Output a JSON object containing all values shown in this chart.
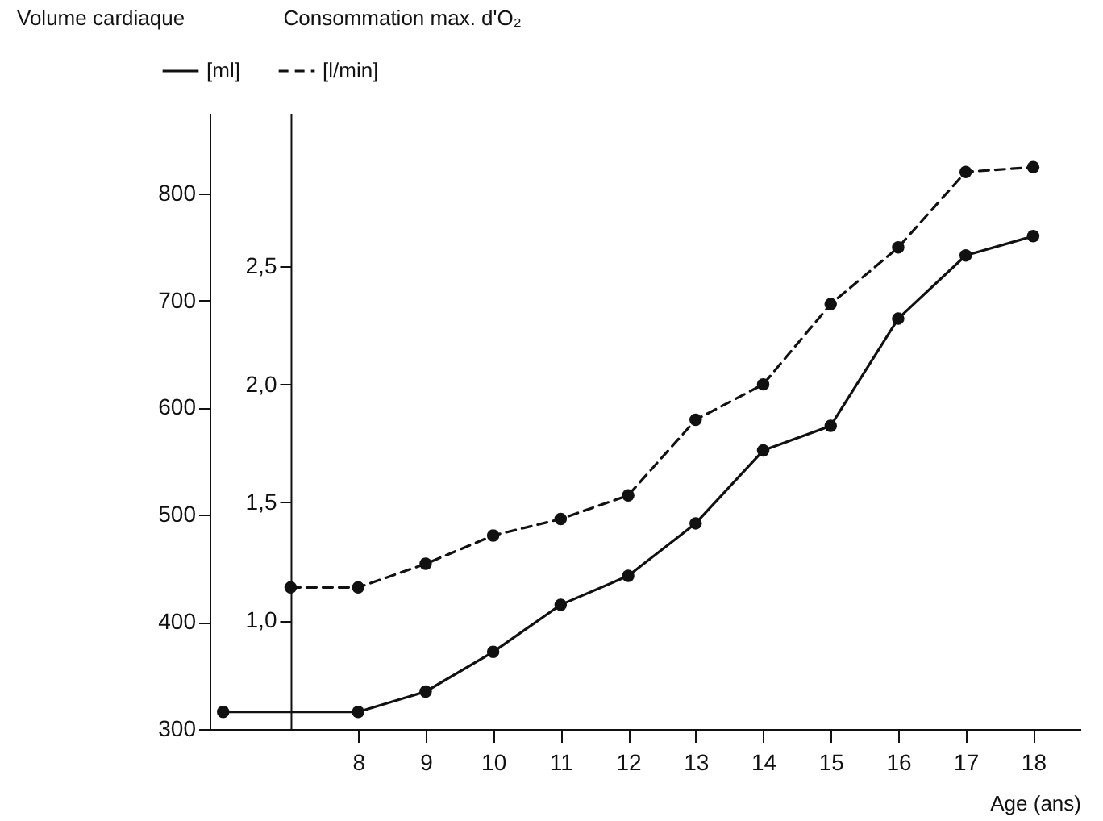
{
  "chart_data": {
    "type": "line",
    "xlabel": "Age (ans)",
    "ylabel": "Volume cardiaque",
    "y2label": "Consommation max. d'O₂",
    "xlim": [
      5.8,
      18.7
    ],
    "xticks": [
      8,
      9,
      10,
      11,
      12,
      13,
      14,
      15,
      16,
      17,
      18
    ],
    "ylim": [
      300,
      875
    ],
    "yticks": [
      300,
      400,
      500,
      600,
      700,
      800
    ],
    "y2lim": [
      0.54,
      3.15
    ],
    "y2ticks": [
      {
        "value": 1,
        "label": "1,0"
      },
      {
        "value": 1.5,
        "label": "1,5"
      },
      {
        "value": 2,
        "label": "2,0"
      },
      {
        "value": 2.5,
        "label": "2,5"
      }
    ],
    "series": [
      {
        "name": "[ml]",
        "color": "#111111",
        "line_style": "solid",
        "x": [
          6,
          8,
          9,
          10,
          11,
          12,
          13,
          14,
          15,
          16,
          17,
          18
        ],
        "values": [
          316,
          316,
          335,
          372,
          416,
          443,
          492,
          560,
          583,
          683,
          742,
          760
        ]
      },
      {
        "name": "[l/min]",
        "color": "#111111",
        "line_style": "dashed",
        "axis": "y2",
        "x": [
          7,
          8,
          9,
          10,
          11,
          12,
          13,
          14,
          15,
          16,
          17,
          18
        ],
        "values": [
          1.14,
          1.14,
          1.24,
          1.36,
          1.43,
          1.53,
          1.85,
          2.0,
          2.34,
          2.58,
          2.9,
          2.92
        ]
      }
    ],
    "marker": "circle",
    "grid": false,
    "legend": "top left"
  }
}
